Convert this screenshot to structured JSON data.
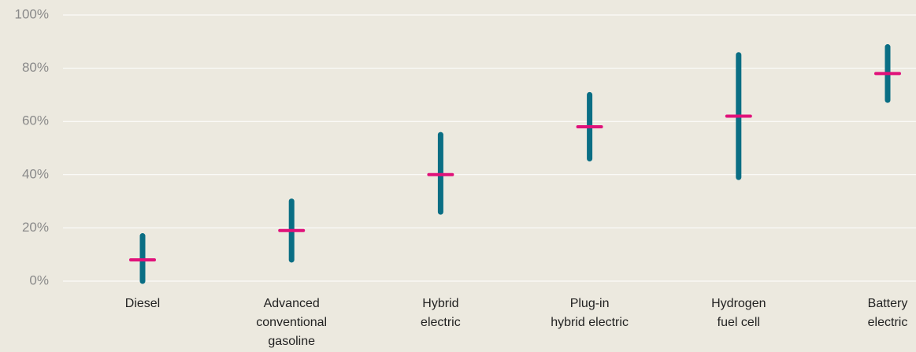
{
  "chart_data": {
    "type": "range",
    "categories": [
      [
        "Diesel"
      ],
      [
        "Advanced",
        "conventional",
        "gasoline"
      ],
      [
        "Hybrid",
        "electric"
      ],
      [
        "Plug-in",
        "hybrid electric"
      ],
      [
        "Hydrogen",
        "fuel cell"
      ],
      [
        "Battery",
        "electric"
      ]
    ],
    "low": [
      0,
      8,
      26,
      46,
      39,
      68
    ],
    "high": [
      17,
      30,
      55,
      70,
      85,
      88
    ],
    "mid": [
      8,
      19,
      40,
      58,
      62,
      78
    ],
    "range_color": "#0a6e84",
    "mid_color": "#e0117a",
    "ylim": [
      0,
      100
    ],
    "yticks": [
      {
        "value": 0,
        "label": "0%"
      },
      {
        "value": 20,
        "label": "20%"
      },
      {
        "value": 40,
        "label": "40%"
      },
      {
        "value": 60,
        "label": "60%"
      },
      {
        "value": 80,
        "label": "80%"
      },
      {
        "value": 100,
        "label": "100%"
      }
    ],
    "grid": true
  }
}
